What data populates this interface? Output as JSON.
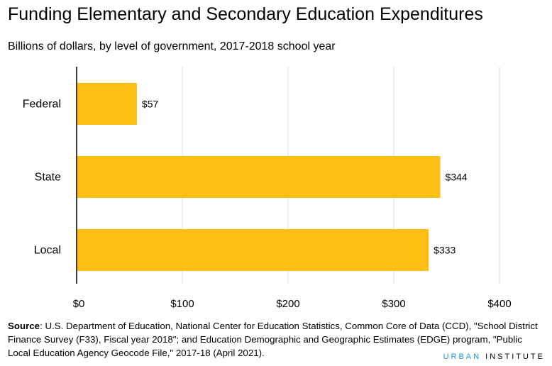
{
  "title": "Funding Elementary and Secondary Education Expenditures",
  "subtitle": "Billions of dollars, by level of government, 2017-2018 school year",
  "source_label": "Source",
  "source_text": ": U.S. Department of Education, National Center for Education Statistics, Common Core of Data (CCD), \"School District Finance Survey (F33), Fiscal year 2018\"; and Education Demographic and Geographic Estimates (EDGE) program, \"Public Local Education Agency Geocode File,\" 2017-18 (April 2021).",
  "logo": {
    "part1": "URBAN",
    "part2": "INSTITUTE"
  },
  "colors": {
    "bar": "#fdbf11",
    "grid": "#dedddd",
    "logo_blue": "#1696d2"
  },
  "chart_data": {
    "type": "bar",
    "orientation": "horizontal",
    "categories": [
      "Federal",
      "State",
      "Local"
    ],
    "values": [
      57,
      344,
      333
    ],
    "data_labels": [
      "$57",
      "$344",
      "$333"
    ],
    "xlim": [
      0,
      400
    ],
    "xticks": [
      0,
      100,
      200,
      300,
      400
    ],
    "xtick_labels": [
      "$0",
      "$100",
      "$200",
      "$300",
      "$400"
    ],
    "grid": "vertical"
  }
}
